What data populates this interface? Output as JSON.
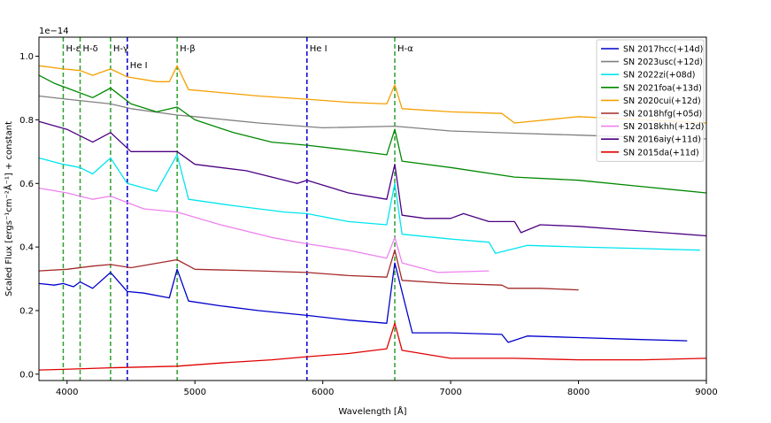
{
  "chart_data": {
    "type": "line",
    "title": "",
    "xlabel": "Wavelength [Å]",
    "ylabel": "Scaled Flux [ergs⁻¹cm⁻²Å⁻¹] + constant",
    "y_offset_text": "1e−14",
    "xlim": [
      3780,
      9000
    ],
    "ylim": [
      -0.02,
      1.06
    ],
    "x_ticks": [
      4000,
      5000,
      6000,
      7000,
      8000,
      9000
    ],
    "y_ticks": [
      0.0,
      0.2,
      0.4,
      0.6,
      0.8,
      1.0
    ],
    "x_tick_labels": [
      "4000",
      "5000",
      "6000",
      "7000",
      "8000",
      "9000"
    ],
    "y_tick_labels": [
      "0.0",
      "0.2",
      "0.4",
      "0.6",
      "0.8",
      "1.0"
    ],
    "grid": false,
    "legend_position": "top-right",
    "reference_lines": [
      {
        "label": "H-ε",
        "x": 3970,
        "color": "#2ca02c"
      },
      {
        "label": "H-δ",
        "x": 4102,
        "color": "#2ca02c"
      },
      {
        "label": "H-γ",
        "x": 4340,
        "color": "#2ca02c"
      },
      {
        "label": "He I",
        "x": 4471,
        "color": "#0000cc"
      },
      {
        "label": "H-β",
        "x": 4861,
        "color": "#2ca02c"
      },
      {
        "label": "He I",
        "x": 5876,
        "color": "#0000cc"
      },
      {
        "label": "H-α",
        "x": 6563,
        "color": "#2ca02c"
      }
    ],
    "series": [
      {
        "name": "SN 2017hcc(+14d)",
        "color": "#0000cc",
        "x": [
          3780,
          3900,
          3970,
          4050,
          4102,
          4200,
          4340,
          4471,
          4600,
          4800,
          4861,
          4950,
          5200,
          5500,
          5876,
          6200,
          6500,
          6563,
          6700,
          7000,
          7400,
          7450,
          7600,
          8000,
          8400,
          8850
        ],
        "y": [
          0.285,
          0.28,
          0.285,
          0.275,
          0.29,
          0.27,
          0.32,
          0.26,
          0.255,
          0.24,
          0.33,
          0.23,
          0.215,
          0.2,
          0.185,
          0.17,
          0.16,
          0.35,
          0.13,
          0.13,
          0.125,
          0.1,
          0.12,
          0.115,
          0.11,
          0.105
        ]
      },
      {
        "name": "SN 2023usc(+12d)",
        "color": "#808080",
        "x": [
          3780,
          4000,
          4340,
          4500,
          4861,
          5000,
          5500,
          6000,
          6563,
          7000,
          7500,
          8000,
          8500,
          9000
        ],
        "y": [
          0.875,
          0.865,
          0.85,
          0.835,
          0.815,
          0.81,
          0.79,
          0.775,
          0.78,
          0.765,
          0.758,
          0.752,
          0.745,
          0.74
        ]
      },
      {
        "name": "SN 2022zi(+08d)",
        "color": "#00e5ee",
        "x": [
          3780,
          3970,
          4102,
          4200,
          4340,
          4471,
          4700,
          4861,
          4950,
          5300,
          5700,
          5876,
          6200,
          6500,
          6563,
          6620,
          7000,
          7300,
          7350,
          7600,
          8000,
          8500,
          8950
        ],
        "y": [
          0.68,
          0.66,
          0.65,
          0.63,
          0.68,
          0.6,
          0.575,
          0.69,
          0.55,
          0.53,
          0.51,
          0.505,
          0.48,
          0.47,
          0.6,
          0.44,
          0.425,
          0.415,
          0.38,
          0.405,
          0.4,
          0.395,
          0.39
        ]
      },
      {
        "name": "SN 2021foa(+13d)",
        "color": "#008800",
        "x": [
          3780,
          3900,
          4000,
          4200,
          4340,
          4500,
          4700,
          4861,
          5000,
          5300,
          5600,
          5876,
          6200,
          6500,
          6563,
          6620,
          7000,
          7500,
          8000,
          8500,
          9000
        ],
        "y": [
          0.94,
          0.915,
          0.9,
          0.87,
          0.9,
          0.85,
          0.825,
          0.84,
          0.8,
          0.76,
          0.73,
          0.72,
          0.705,
          0.69,
          0.77,
          0.67,
          0.65,
          0.62,
          0.61,
          0.59,
          0.57
        ]
      },
      {
        "name": "SN 2020cui(+12d)",
        "color": "#f5a000",
        "x": [
          3780,
          3970,
          4102,
          4200,
          4340,
          4471,
          4700,
          4800,
          4861,
          4950,
          5500,
          5876,
          6200,
          6500,
          6563,
          6620,
          7000,
          7400,
          7500,
          8000,
          8500,
          9000
        ],
        "y": [
          0.97,
          0.96,
          0.955,
          0.94,
          0.96,
          0.935,
          0.92,
          0.92,
          0.97,
          0.895,
          0.875,
          0.865,
          0.855,
          0.85,
          0.91,
          0.835,
          0.825,
          0.82,
          0.79,
          0.81,
          0.8,
          0.79
        ]
      },
      {
        "name": "SN 2018hfg(+05d)",
        "color": "#a52a2a",
        "x": [
          3780,
          4000,
          4200,
          4340,
          4500,
          4861,
          5000,
          5500,
          5876,
          6200,
          6500,
          6563,
          6620,
          7000,
          7400,
          7450,
          7700,
          8000
        ],
        "y": [
          0.325,
          0.33,
          0.34,
          0.345,
          0.335,
          0.36,
          0.33,
          0.325,
          0.32,
          0.31,
          0.305,
          0.39,
          0.295,
          0.285,
          0.28,
          0.27,
          0.27,
          0.265
        ]
      },
      {
        "name": "SN 2018khh(+12d)",
        "color": "#ee82ee",
        "x": [
          3780,
          4000,
          4200,
          4340,
          4600,
          4861,
          5200,
          5600,
          5876,
          6200,
          6500,
          6563,
          6620,
          6900,
          7300
        ],
        "y": [
          0.585,
          0.57,
          0.55,
          0.56,
          0.52,
          0.51,
          0.47,
          0.43,
          0.41,
          0.39,
          0.365,
          0.43,
          0.35,
          0.32,
          0.325
        ]
      },
      {
        "name": "SN 2016aiy(+11d)",
        "color": "#4b0082",
        "x": [
          3780,
          4000,
          4200,
          4340,
          4500,
          4861,
          5000,
          5400,
          5800,
          5876,
          6200,
          6500,
          6563,
          6620,
          6800,
          7000,
          7100,
          7300,
          7500,
          7550,
          7700,
          8000,
          8500,
          9000
        ],
        "y": [
          0.795,
          0.77,
          0.73,
          0.76,
          0.7,
          0.7,
          0.66,
          0.64,
          0.6,
          0.61,
          0.57,
          0.55,
          0.66,
          0.5,
          0.49,
          0.49,
          0.505,
          0.48,
          0.48,
          0.445,
          0.47,
          0.465,
          0.45,
          0.435
        ]
      },
      {
        "name": "SN 2015da(+11d)",
        "color": "#e00000",
        "x": [
          3780,
          3970,
          4340,
          4861,
          5200,
          5600,
          5876,
          6200,
          6500,
          6563,
          6620,
          7000,
          7500,
          8000,
          8500,
          9000
        ],
        "y": [
          0.013,
          0.015,
          0.02,
          0.025,
          0.035,
          0.045,
          0.055,
          0.065,
          0.08,
          0.16,
          0.075,
          0.05,
          0.05,
          0.045,
          0.045,
          0.05
        ]
      }
    ]
  }
}
